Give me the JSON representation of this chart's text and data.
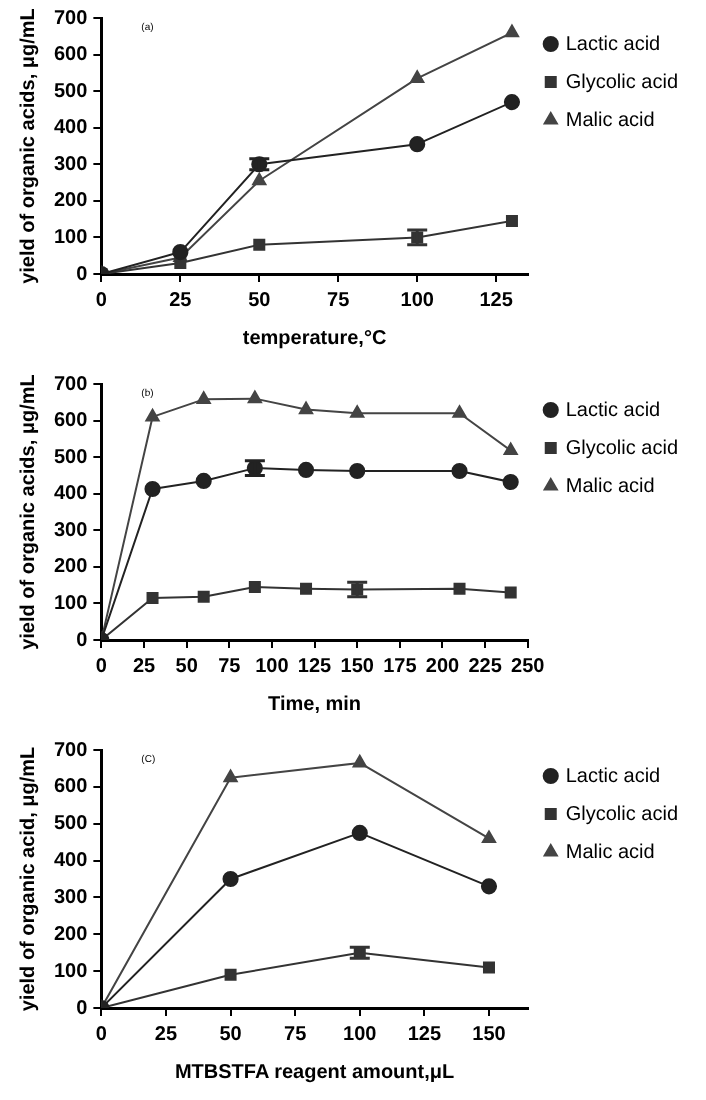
{
  "chart_data": [
    {
      "type": "line",
      "annotations": [
        "(a)"
      ],
      "xlabel": "temperature,°C",
      "ylabel": "yield of organic acids, μg/mL",
      "x": [
        0,
        25,
        50,
        100,
        130
      ],
      "xlim": [
        0,
        135
      ],
      "xticks": [
        0,
        25,
        50,
        75,
        100,
        125
      ],
      "ylim": [
        0,
        700
      ],
      "yticks": [
        0,
        100,
        200,
        300,
        400,
        500,
        600,
        700
      ],
      "grid": false,
      "legend": "top right",
      "series": [
        {
          "name": "Lactic acid",
          "color": "#222222",
          "marker": "circle",
          "values": [
            0,
            60,
            300,
            355,
            470
          ],
          "errors": [
            null,
            null,
            15,
            null,
            null
          ]
        },
        {
          "name": "Glycolic acid",
          "color": "#333333",
          "marker": "square",
          "values": [
            0,
            30,
            80,
            100,
            145
          ],
          "errors": [
            null,
            null,
            null,
            20,
            null
          ]
        },
        {
          "name": "Malic acid",
          "color": "#444444",
          "marker": "triangle",
          "values": [
            0,
            45,
            255,
            535,
            660
          ]
        }
      ]
    },
    {
      "type": "line",
      "annotations": [
        "(b)"
      ],
      "xlabel": "Time, min",
      "ylabel": "yield of organic acids, μg/mL",
      "x": [
        0,
        30,
        60,
        90,
        120,
        150,
        210,
        240
      ],
      "xlim": [
        0,
        250
      ],
      "xticks": [
        0,
        25,
        50,
        75,
        100,
        125,
        150,
        175,
        200,
        225,
        250
      ],
      "ylim": [
        0,
        700
      ],
      "yticks": [
        0,
        100,
        200,
        300,
        400,
        500,
        600,
        700
      ],
      "grid": false,
      "legend": "top right",
      "series": [
        {
          "name": "Lactic acid",
          "color": "#222222",
          "marker": "circle",
          "values": [
            0,
            413,
            435,
            470,
            465,
            462,
            462,
            432
          ],
          "errors": [
            null,
            null,
            null,
            20,
            null,
            null,
            null,
            null
          ]
        },
        {
          "name": "Glycolic acid",
          "color": "#333333",
          "marker": "square",
          "values": [
            0,
            115,
            118,
            145,
            140,
            138,
            140,
            130
          ],
          "errors": [
            null,
            null,
            null,
            null,
            null,
            20,
            null,
            null
          ]
        },
        {
          "name": "Malic acid",
          "color": "#444444",
          "marker": "triangle",
          "values": [
            0,
            610,
            658,
            660,
            630,
            620,
            620,
            518
          ]
        }
      ]
    },
    {
      "type": "line",
      "annotations": [
        "(C)"
      ],
      "xlabel": "MTBSTFA reagent amount,μL",
      "ylabel": "yield of organic acid, μg/mL",
      "x": [
        0,
        50,
        100,
        150
      ],
      "xlim": [
        0,
        165
      ],
      "xticks": [
        0,
        25,
        50,
        75,
        100,
        125,
        150
      ],
      "ylim": [
        0,
        700
      ],
      "yticks": [
        0,
        100,
        200,
        300,
        400,
        500,
        600,
        700
      ],
      "grid": false,
      "legend": "top right",
      "series": [
        {
          "name": "Lactic acid",
          "color": "#222222",
          "marker": "circle",
          "values": [
            0,
            350,
            475,
            330
          ]
        },
        {
          "name": "Glycolic acid",
          "color": "#333333",
          "marker": "square",
          "values": [
            0,
            90,
            150,
            110
          ],
          "errors": [
            null,
            null,
            15,
            null
          ]
        },
        {
          "name": "Malic acid",
          "color": "#444444",
          "marker": "triangle",
          "values": [
            0,
            625,
            665,
            460
          ]
        }
      ]
    }
  ]
}
